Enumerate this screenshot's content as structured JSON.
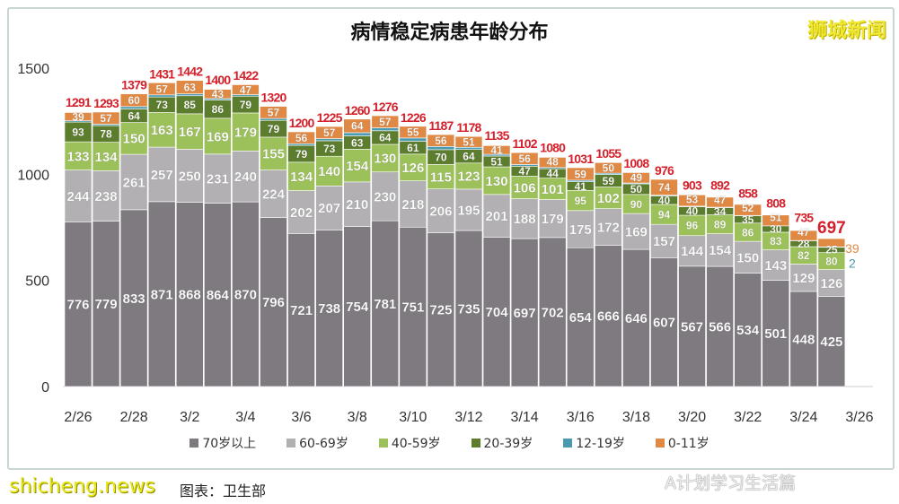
{
  "chart_data": {
    "type": "bar",
    "stacked": true,
    "title": "病情稳定病患年龄分布",
    "xlabel": "",
    "ylabel": "",
    "ylim": [
      0,
      1500
    ],
    "yticks": [
      0,
      500,
      1000,
      1500
    ],
    "grid": false,
    "legend_position": "bottom",
    "categories": [
      "2/26",
      "2/27",
      "2/28",
      "3/1",
      "3/2",
      "3/3",
      "3/4",
      "3/5",
      "3/6",
      "3/7",
      "3/8",
      "3/9",
      "3/10",
      "3/11",
      "3/12",
      "3/13",
      "3/14",
      "3/15",
      "3/16",
      "3/17",
      "3/18",
      "3/19",
      "3/20",
      "3/21",
      "3/22",
      "3/23",
      "3/24",
      "3/25"
    ],
    "xtick_labels": [
      "2/26",
      "2/28",
      "3/2",
      "3/4",
      "3/6",
      "3/8",
      "3/10",
      "3/12",
      "3/14",
      "3/16",
      "3/18",
      "3/20",
      "3/22",
      "3/24",
      "3/26"
    ],
    "series": [
      {
        "name": "70岁以上",
        "color": "#7e7a7f",
        "values": [
          776,
          779,
          833,
          871,
          868,
          864,
          870,
          796,
          721,
          738,
          754,
          781,
          751,
          725,
          735,
          704,
          697,
          702,
          654,
          666,
          646,
          607,
          567,
          566,
          534,
          501,
          448,
          425
        ]
      },
      {
        "name": "60-69岁",
        "color": "#b2b0b3",
        "values": [
          244,
          238,
          261,
          257,
          250,
          231,
          240,
          224,
          202,
          207,
          210,
          230,
          218,
          206,
          195,
          201,
          188,
          179,
          175,
          172,
          169,
          157,
          144,
          154,
          150,
          143,
          129,
          126
        ]
      },
      {
        "name": "40-59岁",
        "color": "#9cc05a",
        "values": [
          133,
          134,
          150,
          163,
          167,
          169,
          179,
          155,
          134,
          140,
          154,
          130,
          126,
          115,
          123,
          130,
          106,
          101,
          95,
          102,
          90,
          94,
          96,
          89,
          86,
          83,
          82,
          80
        ]
      },
      {
        "name": "20-39岁",
        "color": "#5c7c2e",
        "values": [
          93,
          78,
          64,
          73,
          85,
          86,
          79,
          79,
          79,
          73,
          63,
          64,
          61,
          70,
          64,
          51,
          47,
          44,
          41,
          59,
          50,
          40,
          40,
          34,
          35,
          30,
          28,
          25
        ]
      },
      {
        "name": "12-19岁",
        "color": "#4a9ab0",
        "values": [
          6,
          7,
          11,
          10,
          9,
          7,
          7,
          9,
          8,
          10,
          15,
          14,
          15,
          15,
          10,
          8,
          8,
          6,
          7,
          6,
          4,
          4,
          3,
          2,
          1,
          0,
          1,
          2
        ]
      },
      {
        "name": "0-11岁",
        "color": "#e08945",
        "values": [
          39,
          57,
          60,
          57,
          63,
          43,
          47,
          57,
          56,
          57,
          64,
          57,
          55,
          56,
          51,
          41,
          56,
          48,
          59,
          50,
          49,
          74,
          53,
          47,
          52,
          51,
          47,
          39
        ]
      }
    ],
    "totals": [
      1291,
      1293,
      1379,
      1431,
      1442,
      1400,
      1422,
      1320,
      1200,
      1225,
      1260,
      1276,
      1226,
      1187,
      1178,
      1135,
      1102,
      1080,
      1031,
      1055,
      1008,
      976,
      903,
      892,
      858,
      808,
      735,
      697
    ],
    "total_color": "#d4202b"
  },
  "brand": "狮城新闻",
  "source": "图表：卫生部",
  "watermark": "shicheng.news",
  "wechat": "A计划学习生活篇"
}
